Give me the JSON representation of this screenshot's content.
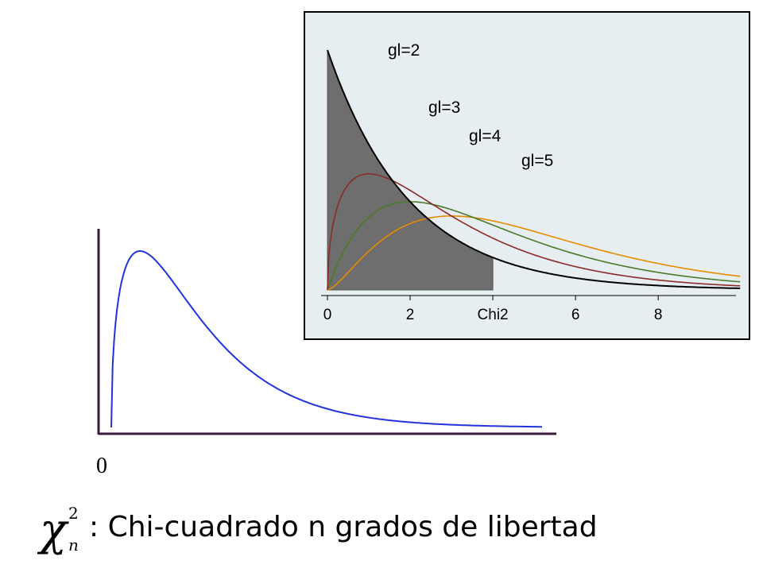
{
  "chart_data": [
    {
      "type": "line",
      "title": "",
      "xlabel": "",
      "ylabel": "",
      "x_tick_labels": [
        "0"
      ],
      "series": [
        {
          "distribution": "chi-squared",
          "df": 3,
          "color": "#2233dd"
        }
      ],
      "x_range": [
        0,
        15
      ],
      "axis_color": "#3a1a3a"
    },
    {
      "type": "area",
      "title": "",
      "xlabel": "",
      "ylabel": "",
      "x_ticks": [
        0,
        2,
        4,
        6,
        8
      ],
      "x_tick_labels": [
        "0",
        "2",
        "Chi2",
        "6",
        "8"
      ],
      "xlim": [
        0,
        10
      ],
      "ylim": [
        0,
        0.52
      ],
      "background": "#e6eef1",
      "series": [
        {
          "name": "gl=2",
          "df": 2,
          "color": "#000000",
          "label": "gl=2"
        },
        {
          "name": "gl=3",
          "df": 3,
          "color": "#8b2a2a",
          "label": "gl=3"
        },
        {
          "name": "gl=4",
          "df": 4,
          "color": "#4a7a2a",
          "label": "gl=4"
        },
        {
          "name": "gl=5",
          "df": 5,
          "color": "#e88a00",
          "label": "gl=5"
        }
      ],
      "shaded_region": {
        "series": "gl=2",
        "from": 0,
        "to": 4,
        "color": "#6e6e6e"
      }
    }
  ],
  "formula": {
    "symbol": "χ",
    "superscript": "2",
    "subscript": "n",
    "text": ": Chi-cuadrado n grados de libertad"
  }
}
